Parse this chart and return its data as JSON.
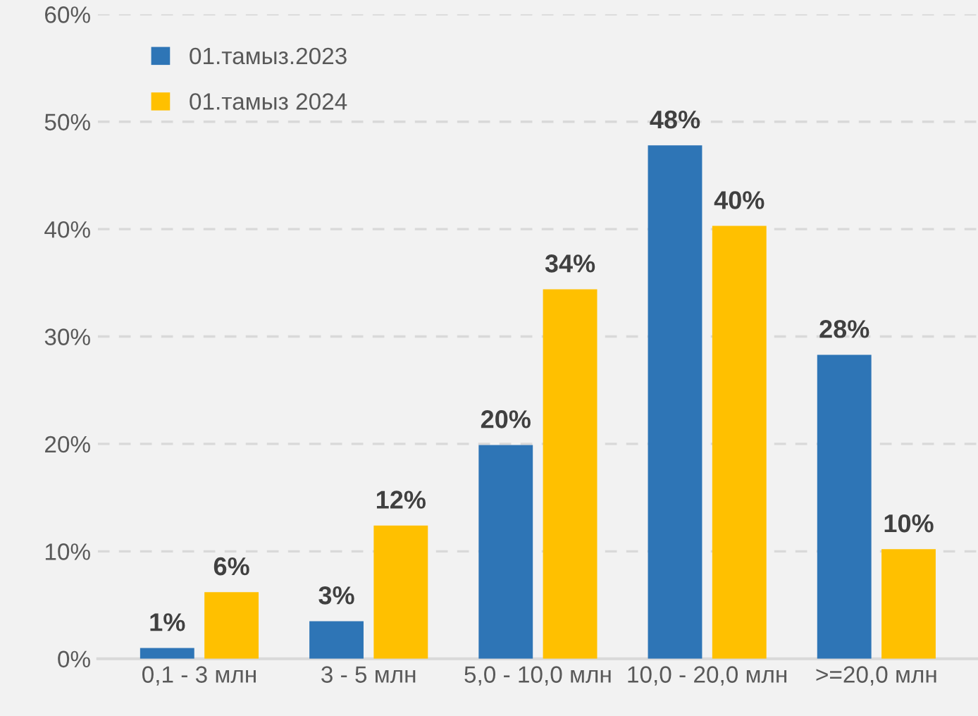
{
  "chart_data": {
    "type": "bar",
    "categories": [
      "0,1 - 3 млн",
      "3 - 5 млн",
      "5,0 - 10,0 млн",
      "10,0 - 20,0 млн",
      ">=20,0 млн"
    ],
    "series": [
      {
        "name": "01.тамыз.2023",
        "color": "#2e75b6",
        "values": [
          1.0,
          3.5,
          19.9,
          47.8,
          28.3
        ],
        "value_labels": [
          "1%",
          "3%",
          "20%",
          "48%",
          "28%"
        ]
      },
      {
        "name": "01.тамыз 2024",
        "color": "#ffc000",
        "values": [
          6.2,
          12.4,
          34.4,
          40.3,
          10.2
        ],
        "value_labels": [
          "6%",
          "12%",
          "34%",
          "40%",
          "10%"
        ]
      }
    ],
    "ylim": [
      0,
      60
    ],
    "yticks": [
      {
        "value": 0,
        "label": "0%"
      },
      {
        "value": 10,
        "label": "10%"
      },
      {
        "value": 20,
        "label": "20%"
      },
      {
        "value": 30,
        "label": "30%"
      },
      {
        "value": 40,
        "label": "40%"
      },
      {
        "value": 50,
        "label": "50%"
      },
      {
        "value": 60,
        "label": "60%"
      }
    ],
    "grid": "y",
    "legend": "top left"
  }
}
